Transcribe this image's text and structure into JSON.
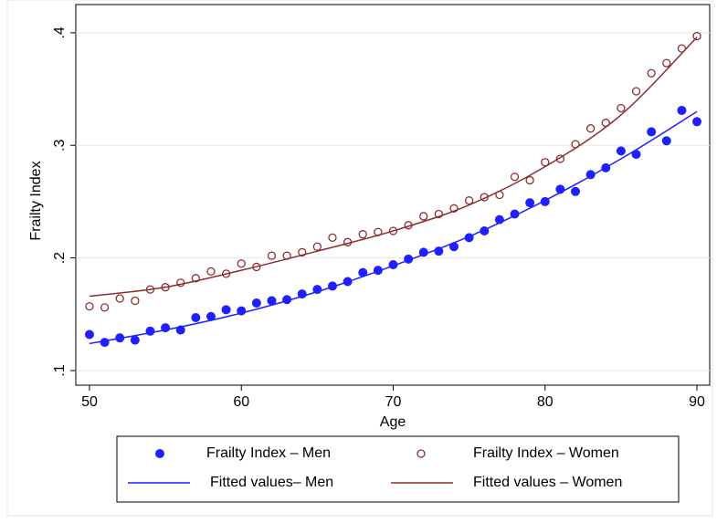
{
  "chart_data": {
    "type": "scatter",
    "x_label": "Age",
    "y_label": "Frailty Index",
    "xlim": [
      49.1,
      90.84
    ],
    "ylim": [
      0.087,
      0.425
    ],
    "xticks": [
      50,
      60,
      70,
      80,
      90
    ],
    "yticks": [
      {
        "value": 0.1,
        "label": ".1"
      },
      {
        "value": 0.2,
        "label": ".2"
      },
      {
        "value": 0.3,
        "label": ".3"
      },
      {
        "value": 0.4,
        "label": ".4"
      }
    ],
    "grid": true,
    "series": [
      {
        "name": "Frailty Index – Men",
        "color": "#1f1fff",
        "style": "filled",
        "x": [
          50,
          51,
          52,
          53,
          54,
          55,
          56,
          57,
          58,
          59,
          60,
          61,
          62,
          63,
          64,
          65,
          66,
          67,
          68,
          69,
          70,
          71,
          72,
          73,
          74,
          75,
          76,
          77,
          78,
          79,
          80,
          81,
          82,
          83,
          84,
          85,
          86,
          87,
          88,
          89,
          90
        ],
        "values": [
          0.132,
          0.125,
          0.129,
          0.127,
          0.135,
          0.138,
          0.136,
          0.147,
          0.148,
          0.154,
          0.153,
          0.16,
          0.162,
          0.163,
          0.168,
          0.172,
          0.175,
          0.179,
          0.187,
          0.189,
          0.194,
          0.199,
          0.205,
          0.206,
          0.21,
          0.218,
          0.224,
          0.234,
          0.239,
          0.249,
          0.25,
          0.261,
          0.259,
          0.274,
          0.28,
          0.295,
          0.292,
          0.312,
          0.304,
          0.331,
          0.321
        ]
      },
      {
        "name": "Frailty Index – Women",
        "color": "#8b2e2e",
        "style": "hollow",
        "x": [
          50,
          51,
          52,
          53,
          54,
          55,
          56,
          57,
          58,
          59,
          60,
          61,
          62,
          63,
          64,
          65,
          66,
          67,
          68,
          69,
          70,
          71,
          72,
          73,
          74,
          75,
          76,
          77,
          78,
          79,
          80,
          81,
          82,
          83,
          84,
          85,
          86,
          87,
          88,
          89,
          90
        ],
        "values": [
          0.157,
          0.156,
          0.164,
          0.162,
          0.172,
          0.174,
          0.178,
          0.182,
          0.188,
          0.186,
          0.195,
          0.192,
          0.202,
          0.202,
          0.205,
          0.21,
          0.218,
          0.214,
          0.221,
          0.223,
          0.224,
          0.229,
          0.237,
          0.239,
          0.244,
          0.251,
          0.254,
          0.256,
          0.272,
          0.269,
          0.285,
          0.288,
          0.301,
          0.315,
          0.32,
          0.333,
          0.348,
          0.364,
          0.373,
          0.386,
          0.397
        ]
      },
      {
        "name": "Fitted values– Men",
        "color": "#1f1fff",
        "style": "line",
        "x": [
          50,
          55,
          60,
          65,
          70,
          75,
          80,
          85,
          90
        ],
        "values": [
          0.124,
          0.136,
          0.151,
          0.17,
          0.193,
          0.219,
          0.251,
          0.288,
          0.33
        ]
      },
      {
        "name": "Fitted values – Women",
        "color": "#8b2e2e",
        "style": "line",
        "x": [
          50,
          55,
          60,
          65,
          70,
          75,
          80,
          85,
          90
        ],
        "values": [
          0.166,
          0.174,
          0.189,
          0.206,
          0.224,
          0.247,
          0.281,
          0.327,
          0.396
        ]
      }
    ]
  }
}
